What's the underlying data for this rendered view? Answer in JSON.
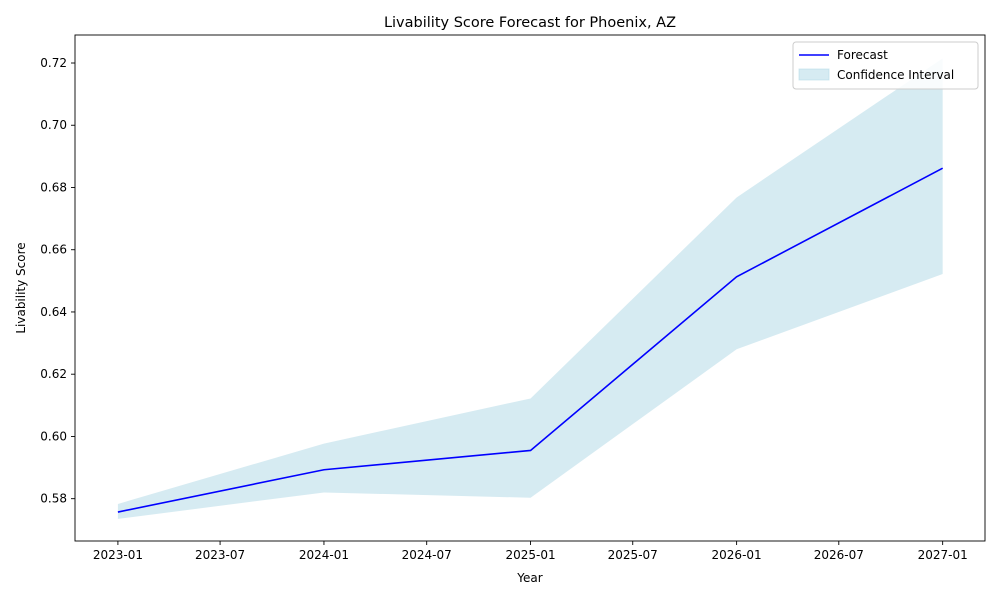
{
  "chart_data": {
    "type": "line",
    "title": "Livability Score Forecast for Phoenix, AZ",
    "xlabel": "Year",
    "ylabel": "Livability Score",
    "x": [
      "2023-01-01",
      "2024-01-01",
      "2025-01-01",
      "2026-01-01",
      "2027-01-01"
    ],
    "series": [
      {
        "name": "Forecast",
        "color": "#0000ff",
        "values": [
          0.5757,
          0.5893,
          0.5955,
          0.6513,
          0.6862
        ]
      }
    ],
    "band": {
      "name": "Confidence Interval",
      "color": "#add8e6",
      "lower": [
        0.5735,
        0.582,
        0.5803,
        0.628,
        0.6522
      ],
      "upper": [
        0.5783,
        0.5977,
        0.6122,
        0.6768,
        0.7215
      ]
    },
    "xticks": [
      "2023-01",
      "2023-07",
      "2024-01",
      "2024-07",
      "2025-01",
      "2025-07",
      "2026-01",
      "2026-07",
      "2027-01"
    ],
    "xtick_dates": [
      "2023-01-01",
      "2023-07-01",
      "2024-01-01",
      "2024-07-01",
      "2025-01-01",
      "2025-07-01",
      "2026-01-01",
      "2026-07-01",
      "2027-01-01"
    ],
    "xlim": [
      "2022-10-17",
      "2027-03-17"
    ],
    "yticks": [
      "0.58",
      "0.60",
      "0.62",
      "0.64",
      "0.66",
      "0.68",
      "0.70",
      "0.72"
    ],
    "ylim": [
      0.5664,
      0.729
    ],
    "grid": false,
    "legend_position": "top-right"
  }
}
